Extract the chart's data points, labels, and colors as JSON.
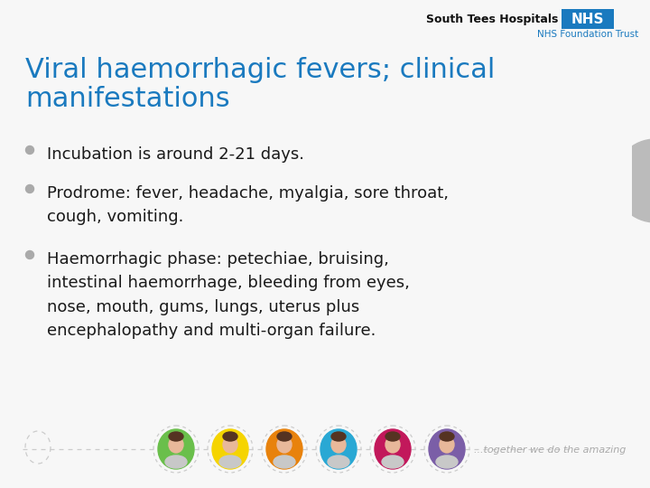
{
  "bg_color": "#f7f7f7",
  "title_line1": "Viral haemorrhagic fevers; clinical",
  "title_line2": "manifestations",
  "title_color": "#1a7abf",
  "title_fontsize": 22,
  "bullet_color": "#aaaaaa",
  "bullet_text_color": "#1a1a1a",
  "bullet_fontsize": 13,
  "bullets": [
    "Incubation is around 2-21 days.",
    "Prodrome: fever, headache, myalgia, sore throat,\ncough, vomiting.",
    "Haemorrhagic phase: petechiae, bruising,\nintestinal haemorrhage, bleeding from eyes,\nnose, mouth, gums, lungs, uterus plus\nencephalopathy and multi-organ failure."
  ],
  "nhs_box_color": "#1a7abf",
  "nhs_text": "NHS",
  "hospital_text": "South Tees Hospitals",
  "foundation_text": "NHS Foundation Trust",
  "footer_text": "...together we do the amazing",
  "footer_color": "#aaaaaa",
  "circle_colors": [
    "#6abf4b",
    "#f5d400",
    "#e8820c",
    "#29a8d4",
    "#c2185b",
    "#7b5ea7"
  ],
  "right_circle_color": "#bbbbbb",
  "logo_hospital_fontsize": 9,
  "logo_nhs_fontsize": 11,
  "logo_foundation_fontsize": 7.5
}
